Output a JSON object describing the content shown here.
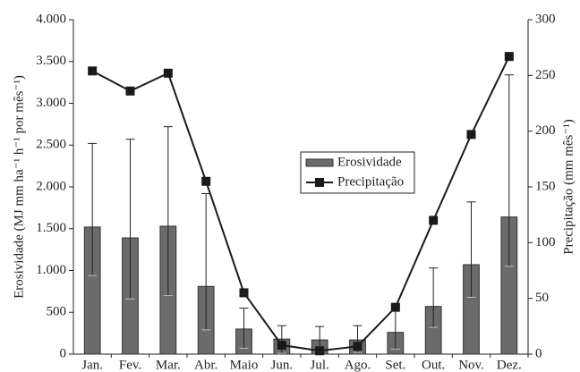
{
  "chart_data": {
    "type": "bar-line",
    "categories": [
      "Jan.",
      "Fev.",
      "Mar.",
      "Abr.",
      "Maio",
      "Jun.",
      "Jul.",
      "Ago.",
      "Set.",
      "Out.",
      "Nov.",
      "Dez."
    ],
    "series": [
      {
        "name": "Erosividade",
        "type": "bar",
        "color": "#6b6b6b",
        "values": [
          1520,
          1390,
          1530,
          810,
          300,
          180,
          170,
          170,
          260,
          570,
          1070,
          1640
        ],
        "error_upper": [
          2520,
          2570,
          2720,
          1920,
          550,
          340,
          330,
          340,
          580,
          1030,
          1820,
          3340
        ],
        "error_lower": [
          940,
          660,
          700,
          290,
          70,
          10,
          20,
          20,
          60,
          320,
          680,
          1050
        ]
      },
      {
        "name": "Precipitação",
        "type": "line",
        "axis": "y2",
        "color": "#1a1a1a",
        "values": [
          254,
          236,
          252,
          155,
          55,
          8,
          3,
          7,
          42,
          120,
          197,
          267
        ]
      }
    ],
    "y_label": "Erosividade (MJ mm ha⁻¹ h⁻¹ por mês⁻¹)",
    "y2_label": "Precipitação (mm mês⁻¹)",
    "ylim": [
      0,
      4000
    ],
    "yticks": [
      0,
      500,
      {
        "value": 1000,
        "label": "1.000"
      },
      {
        "value": 1500,
        "label": "1.500"
      },
      {
        "value": 2000,
        "label": "2.000"
      },
      {
        "value": 2500,
        "label": "2.500"
      },
      {
        "value": 3000,
        "label": "3.000"
      },
      {
        "value": 3500,
        "label": "3.500"
      },
      {
        "value": 4000,
        "label": "4.000"
      }
    ],
    "y2lim": [
      0,
      300
    ],
    "y2ticks": [
      0,
      50,
      100,
      150,
      200,
      250,
      300
    ],
    "legend": "center"
  }
}
